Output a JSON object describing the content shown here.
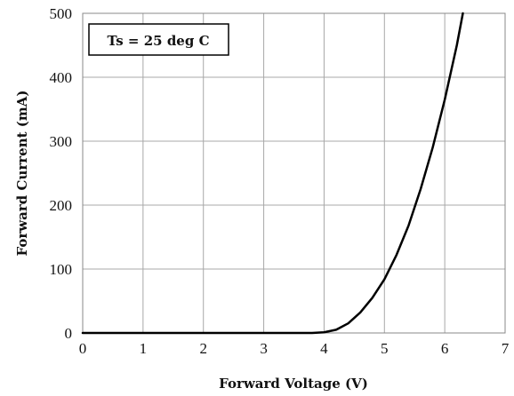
{
  "chart_data": {
    "type": "line",
    "xlabel": "Forward Voltage (V)",
    "ylabel": "Forward Current (mA)",
    "xlim": [
      0,
      7
    ],
    "ylim": [
      0,
      500
    ],
    "xticks": [
      0,
      1,
      2,
      3,
      4,
      5,
      6,
      7
    ],
    "yticks": [
      0,
      100,
      200,
      300,
      400,
      500
    ],
    "grid": true,
    "annotation": "Ts = 25 deg C",
    "series": [
      {
        "color": "#000000",
        "x": [
          0,
          1,
          2,
          3,
          3.8,
          4.0,
          4.2,
          4.4,
          4.6,
          4.8,
          5.0,
          5.2,
          5.4,
          5.6,
          5.8,
          6.0,
          6.2,
          6.3
        ],
        "y": [
          0,
          0,
          0,
          0,
          0,
          1,
          5,
          15,
          32,
          55,
          84,
          122,
          168,
          225,
          290,
          365,
          450,
          500
        ]
      }
    ]
  }
}
